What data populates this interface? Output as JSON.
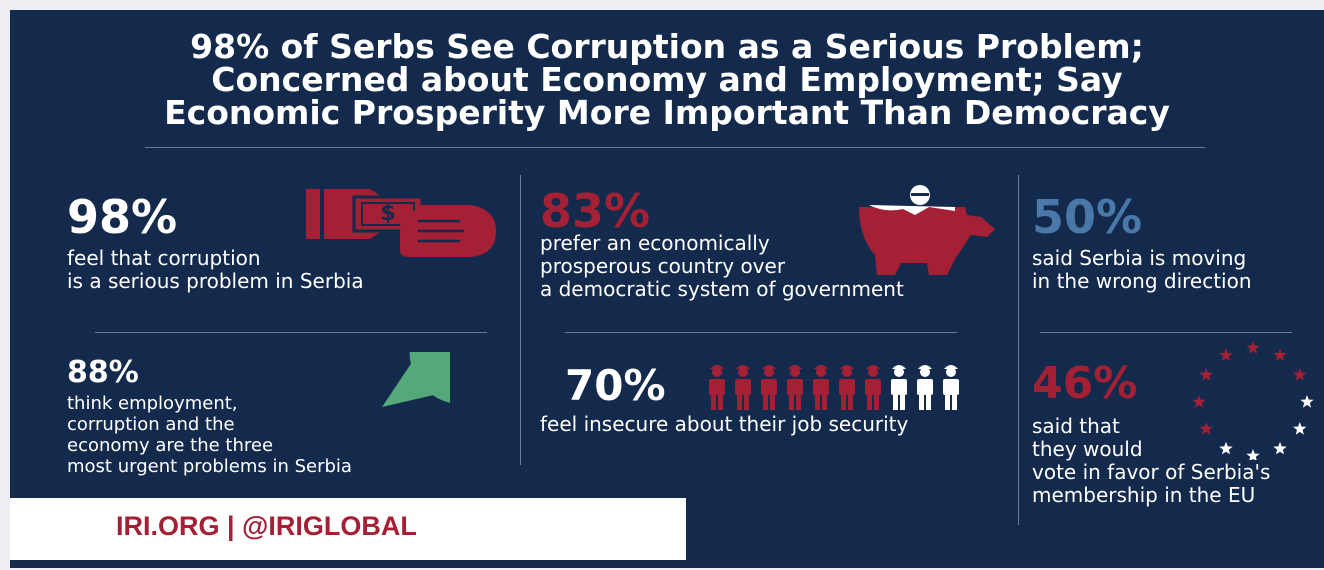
{
  "title_lines": [
    "98% of Serbs See Corruption as a Serious Problem;",
    "Concerned about Economy and Employment; Say",
    "Economic Prosperity More Important Than Democracy"
  ],
  "stats": {
    "corruption": {
      "pct": "98%",
      "lines": [
        "feel that corruption",
        "is a serious problem in Serbia"
      ],
      "icon": "money-hand-icon"
    },
    "prosperity": {
      "pct": "83%",
      "lines": [
        "prefer an economically",
        "prosperous country over",
        "a democratic system of government"
      ],
      "icon": "piggy-bank-icon"
    },
    "direction": {
      "pct": "50%",
      "lines": [
        "said Serbia is moving",
        "in the wrong direction"
      ]
    },
    "urgent": {
      "pct": "88%",
      "lines": [
        "think employment,",
        "corruption and the",
        "economy are the three",
        "most urgent problems in Serbia"
      ],
      "icon": "pie-chart-icon",
      "fill_fraction": 0.88
    },
    "jobs": {
      "pct": "70%",
      "lines": [
        "feel insecure about their job security"
      ],
      "icon": "workers-icon",
      "red_figures": 7,
      "total_figures": 10
    },
    "eu": {
      "pct": "46%",
      "lines": [
        "said that",
        "they would",
        "vote in favor of Serbia's",
        "membership in the EU"
      ],
      "icon": "eu-stars-icon"
    }
  },
  "footer": {
    "text": "IRI.ORG | @IRIGLOBAL"
  },
  "colors": {
    "background": "#132a4c",
    "red": "#a32035",
    "blue": "#4a78a8",
    "green": "#55a87a",
    "white": "#ffffff"
  }
}
